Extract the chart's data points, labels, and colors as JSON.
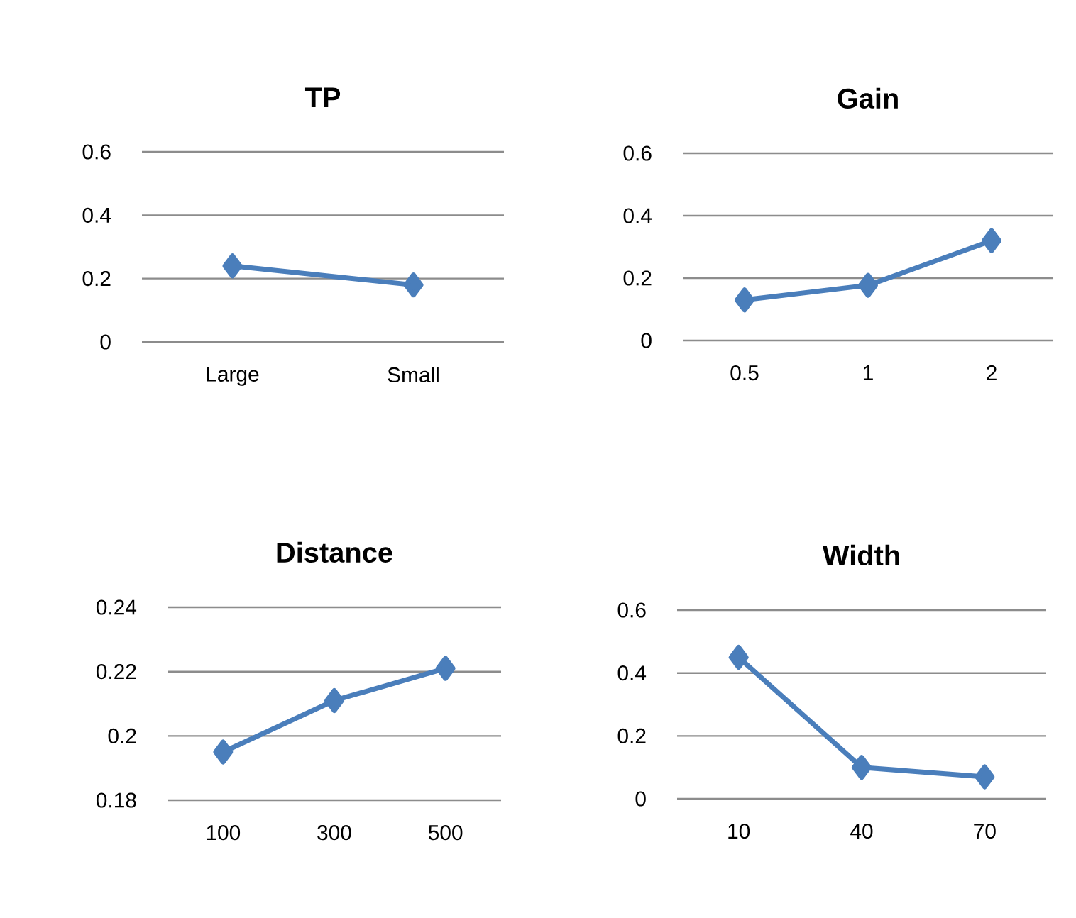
{
  "chart_data": [
    {
      "type": "line",
      "title": "TP",
      "categories": [
        "Large",
        "Small"
      ],
      "values": [
        0.24,
        0.18
      ],
      "color": "#4a7ebb",
      "marker": "diamond",
      "grid": "y",
      "ylim": [
        0,
        0.6
      ],
      "yticks": [
        0,
        0.2,
        0.4,
        0.6
      ]
    },
    {
      "type": "line",
      "title": "Gain",
      "categories": [
        "0.5",
        "1",
        "2"
      ],
      "values": [
        0.13,
        0.177,
        0.32
      ],
      "color": "#4a7ebb",
      "marker": "diamond",
      "grid": "y",
      "ylim": [
        0,
        0.6
      ],
      "yticks": [
        0,
        0.2,
        0.4,
        0.6
      ]
    },
    {
      "type": "line",
      "title": "Distance",
      "categories": [
        "100",
        "300",
        "500"
      ],
      "values": [
        0.195,
        0.211,
        0.221
      ],
      "color": "#4a7ebb",
      "marker": "diamond",
      "grid": "y",
      "ylim": [
        0.18,
        0.24
      ],
      "yticks": [
        0.18,
        0.2,
        0.22,
        0.24
      ]
    },
    {
      "type": "line",
      "title": "Width",
      "categories": [
        "10",
        "40",
        "70"
      ],
      "values": [
        0.45,
        0.1,
        0.07
      ],
      "color": "#4a7ebb",
      "marker": "diamond",
      "grid": "y",
      "ylim": [
        0,
        0.6
      ],
      "yticks": [
        0,
        0.2,
        0.4,
        0.6
      ]
    }
  ]
}
